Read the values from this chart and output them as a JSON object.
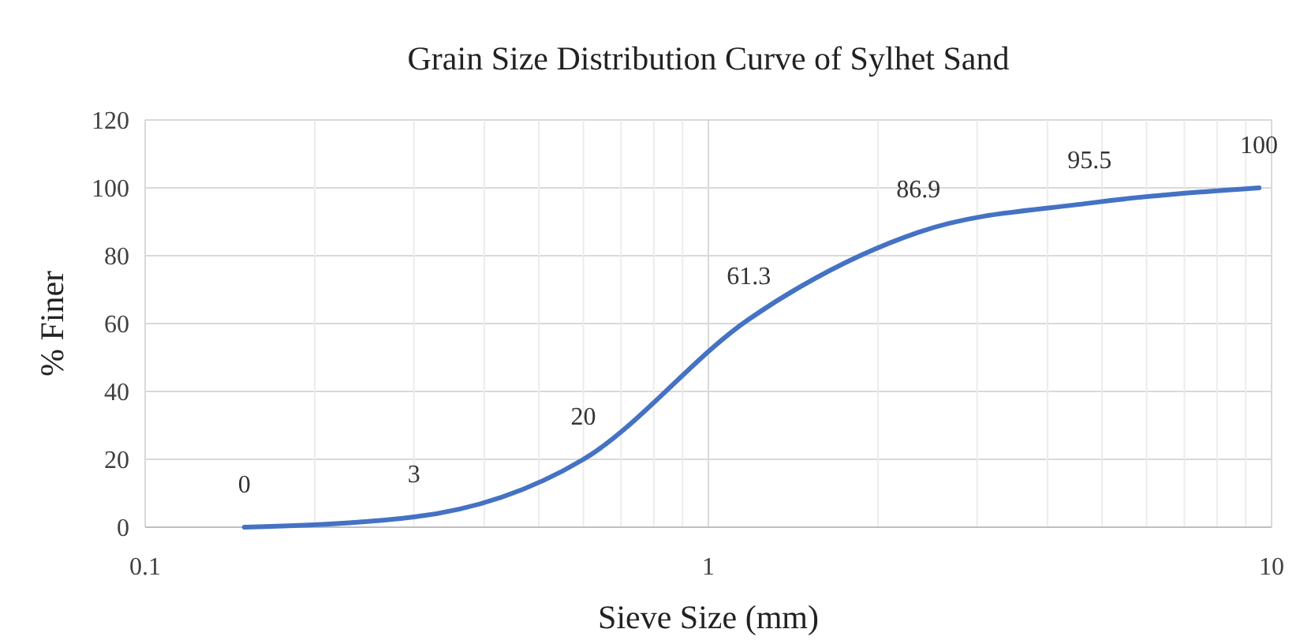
{
  "chart_data": {
    "type": "line",
    "title": "Grain Size Distribution Curve of Sylhet Sand",
    "xlabel": "Sieve Size (mm)",
    "ylabel": "% Finer",
    "x": [
      0.15,
      0.3,
      0.6,
      1.18,
      2.36,
      4.75,
      9.5
    ],
    "series": [
      {
        "color": "#4472c4",
        "values": [
          0,
          3,
          20,
          61.3,
          86.9,
          95.5,
          100
        ]
      }
    ],
    "log": "x",
    "xlim": [
      0.1,
      10
    ],
    "xticks": [
      0.1,
      {
        "value": 0.2,
        "label": null
      },
      {
        "value": 0.3,
        "label": null
      },
      {
        "value": 0.4,
        "label": null
      },
      {
        "value": 0.5,
        "label": null
      },
      {
        "value": 0.6,
        "label": null
      },
      {
        "value": 0.7,
        "label": null
      },
      {
        "value": 0.8,
        "label": null
      },
      {
        "value": 0.9,
        "label": null
      },
      1,
      {
        "value": 2,
        "label": null
      },
      {
        "value": 3,
        "label": null
      },
      {
        "value": 4,
        "label": null
      },
      {
        "value": 5,
        "label": null
      },
      {
        "value": 6,
        "label": null
      },
      {
        "value": 7,
        "label": null
      },
      {
        "value": 8,
        "label": null
      },
      {
        "value": 9,
        "label": null
      },
      10
    ],
    "ylim": [
      0,
      120
    ],
    "yticks": [
      0,
      20,
      40,
      60,
      80,
      100,
      120
    ],
    "grid": true,
    "data_labels": true,
    "marker": "none",
    "line_style": "solid"
  }
}
